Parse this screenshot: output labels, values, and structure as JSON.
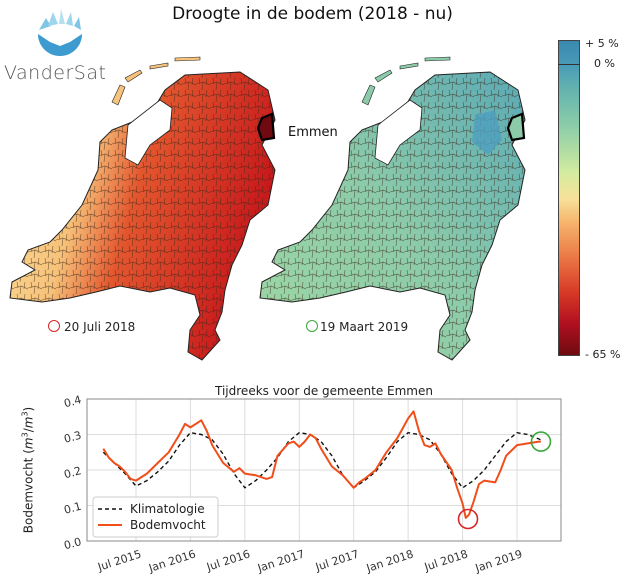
{
  "header": {
    "title": "Droogte in de bodem (2018 - nu)",
    "logo_text": "VanderSat"
  },
  "maps": {
    "left": {
      "date_label": "20 Juli 2018",
      "ring_color": "#d62728",
      "highlight_label": "Emmen"
    },
    "right": {
      "date_label": "19 Maart 2019",
      "ring_color": "#3aa83a"
    }
  },
  "colorbar": {
    "labels": [
      "+ 5 %",
      "0 %",
      "- 65 %"
    ],
    "max_pct": 5,
    "zero_pct": 0,
    "min_pct": -65
  },
  "chart_data": {
    "type": "line",
    "title": "Tijdreeks voor de gemeente Emmen",
    "xlabel": "",
    "ylabel": "Bodemvocht (m³/m³)",
    "ylim": [
      0.0,
      0.4
    ],
    "yticks": [
      "0.0",
      "0.1",
      "0.2",
      "0.3",
      "0.4"
    ],
    "xticks": [
      "Jul 2015",
      "Jan 2016",
      "Jul 2016",
      "Jan 2017",
      "Jul 2017",
      "Jan 2018",
      "Jul 2018",
      "Jan 2019"
    ],
    "xtick_months": [
      2015.5,
      2016.0,
      2016.5,
      2017.0,
      2017.5,
      2018.0,
      2018.5,
      2019.0
    ],
    "xlim": [
      2015.1,
      2019.65
    ],
    "grid": true,
    "legend": {
      "position": "bottom-left",
      "entries": [
        "Klimatologie",
        "Bodemvocht"
      ]
    },
    "series": [
      {
        "name": "Klimatologie",
        "color": "#111111",
        "style": "dashed",
        "x": [
          2015.2,
          2015.3,
          2015.4,
          2015.5,
          2015.6,
          2015.7,
          2015.8,
          2015.9,
          2016.0,
          2016.1,
          2016.2,
          2016.3,
          2016.4,
          2016.5,
          2016.6,
          2016.7,
          2016.8,
          2016.9,
          2017.0,
          2017.1,
          2017.2,
          2017.3,
          2017.4,
          2017.5,
          2017.6,
          2017.7,
          2017.8,
          2017.9,
          2018.0,
          2018.1,
          2018.2,
          2018.3,
          2018.4,
          2018.5,
          2018.6,
          2018.7,
          2018.8,
          2018.9,
          2019.0,
          2019.1,
          2019.22
        ],
        "y": [
          0.25,
          0.22,
          0.19,
          0.155,
          0.17,
          0.195,
          0.225,
          0.27,
          0.305,
          0.3,
          0.285,
          0.245,
          0.19,
          0.15,
          0.17,
          0.2,
          0.235,
          0.28,
          0.305,
          0.3,
          0.28,
          0.24,
          0.185,
          0.15,
          0.17,
          0.195,
          0.235,
          0.28,
          0.305,
          0.3,
          0.285,
          0.245,
          0.19,
          0.15,
          0.17,
          0.2,
          0.24,
          0.28,
          0.305,
          0.3,
          0.285
        ]
      },
      {
        "name": "Bodemvocht",
        "color": "#f04e1a",
        "style": "solid",
        "x": [
          2015.2,
          2015.25,
          2015.3,
          2015.35,
          2015.4,
          2015.45,
          2015.5,
          2015.55,
          2015.6,
          2015.7,
          2015.8,
          2015.9,
          2015.95,
          2016.0,
          2016.05,
          2016.1,
          2016.15,
          2016.2,
          2016.3,
          2016.4,
          2016.45,
          2016.5,
          2016.6,
          2016.7,
          2016.75,
          2016.8,
          2016.9,
          2016.95,
          2017.0,
          2017.05,
          2017.1,
          2017.15,
          2017.2,
          2017.3,
          2017.4,
          2017.5,
          2017.55,
          2017.6,
          2017.7,
          2017.8,
          2017.9,
          2018.0,
          2018.05,
          2018.1,
          2018.15,
          2018.2,
          2018.25,
          2018.3,
          2018.4,
          2018.45,
          2018.5,
          2018.53,
          2018.56,
          2018.6,
          2018.65,
          2018.7,
          2018.8,
          2018.85,
          2018.9,
          2019.0,
          2019.1,
          2019.2,
          2019.22
        ],
        "y": [
          0.26,
          0.235,
          0.22,
          0.21,
          0.195,
          0.175,
          0.17,
          0.18,
          0.19,
          0.22,
          0.25,
          0.3,
          0.33,
          0.32,
          0.33,
          0.34,
          0.31,
          0.27,
          0.22,
          0.195,
          0.205,
          0.19,
          0.185,
          0.175,
          0.18,
          0.24,
          0.275,
          0.28,
          0.265,
          0.28,
          0.3,
          0.29,
          0.26,
          0.21,
          0.185,
          0.15,
          0.165,
          0.175,
          0.2,
          0.25,
          0.29,
          0.345,
          0.365,
          0.31,
          0.27,
          0.265,
          0.275,
          0.245,
          0.2,
          0.15,
          0.105,
          0.065,
          0.075,
          0.11,
          0.16,
          0.17,
          0.165,
          0.2,
          0.24,
          0.27,
          0.275,
          0.28,
          0.28
        ]
      }
    ],
    "markers": [
      {
        "x": 2018.55,
        "y": 0.062,
        "color": "#d62728",
        "label": "20 Juli 2018"
      },
      {
        "x": 2019.22,
        "y": 0.28,
        "color": "#3aa83a",
        "label": "19 Maart 2019"
      }
    ]
  }
}
